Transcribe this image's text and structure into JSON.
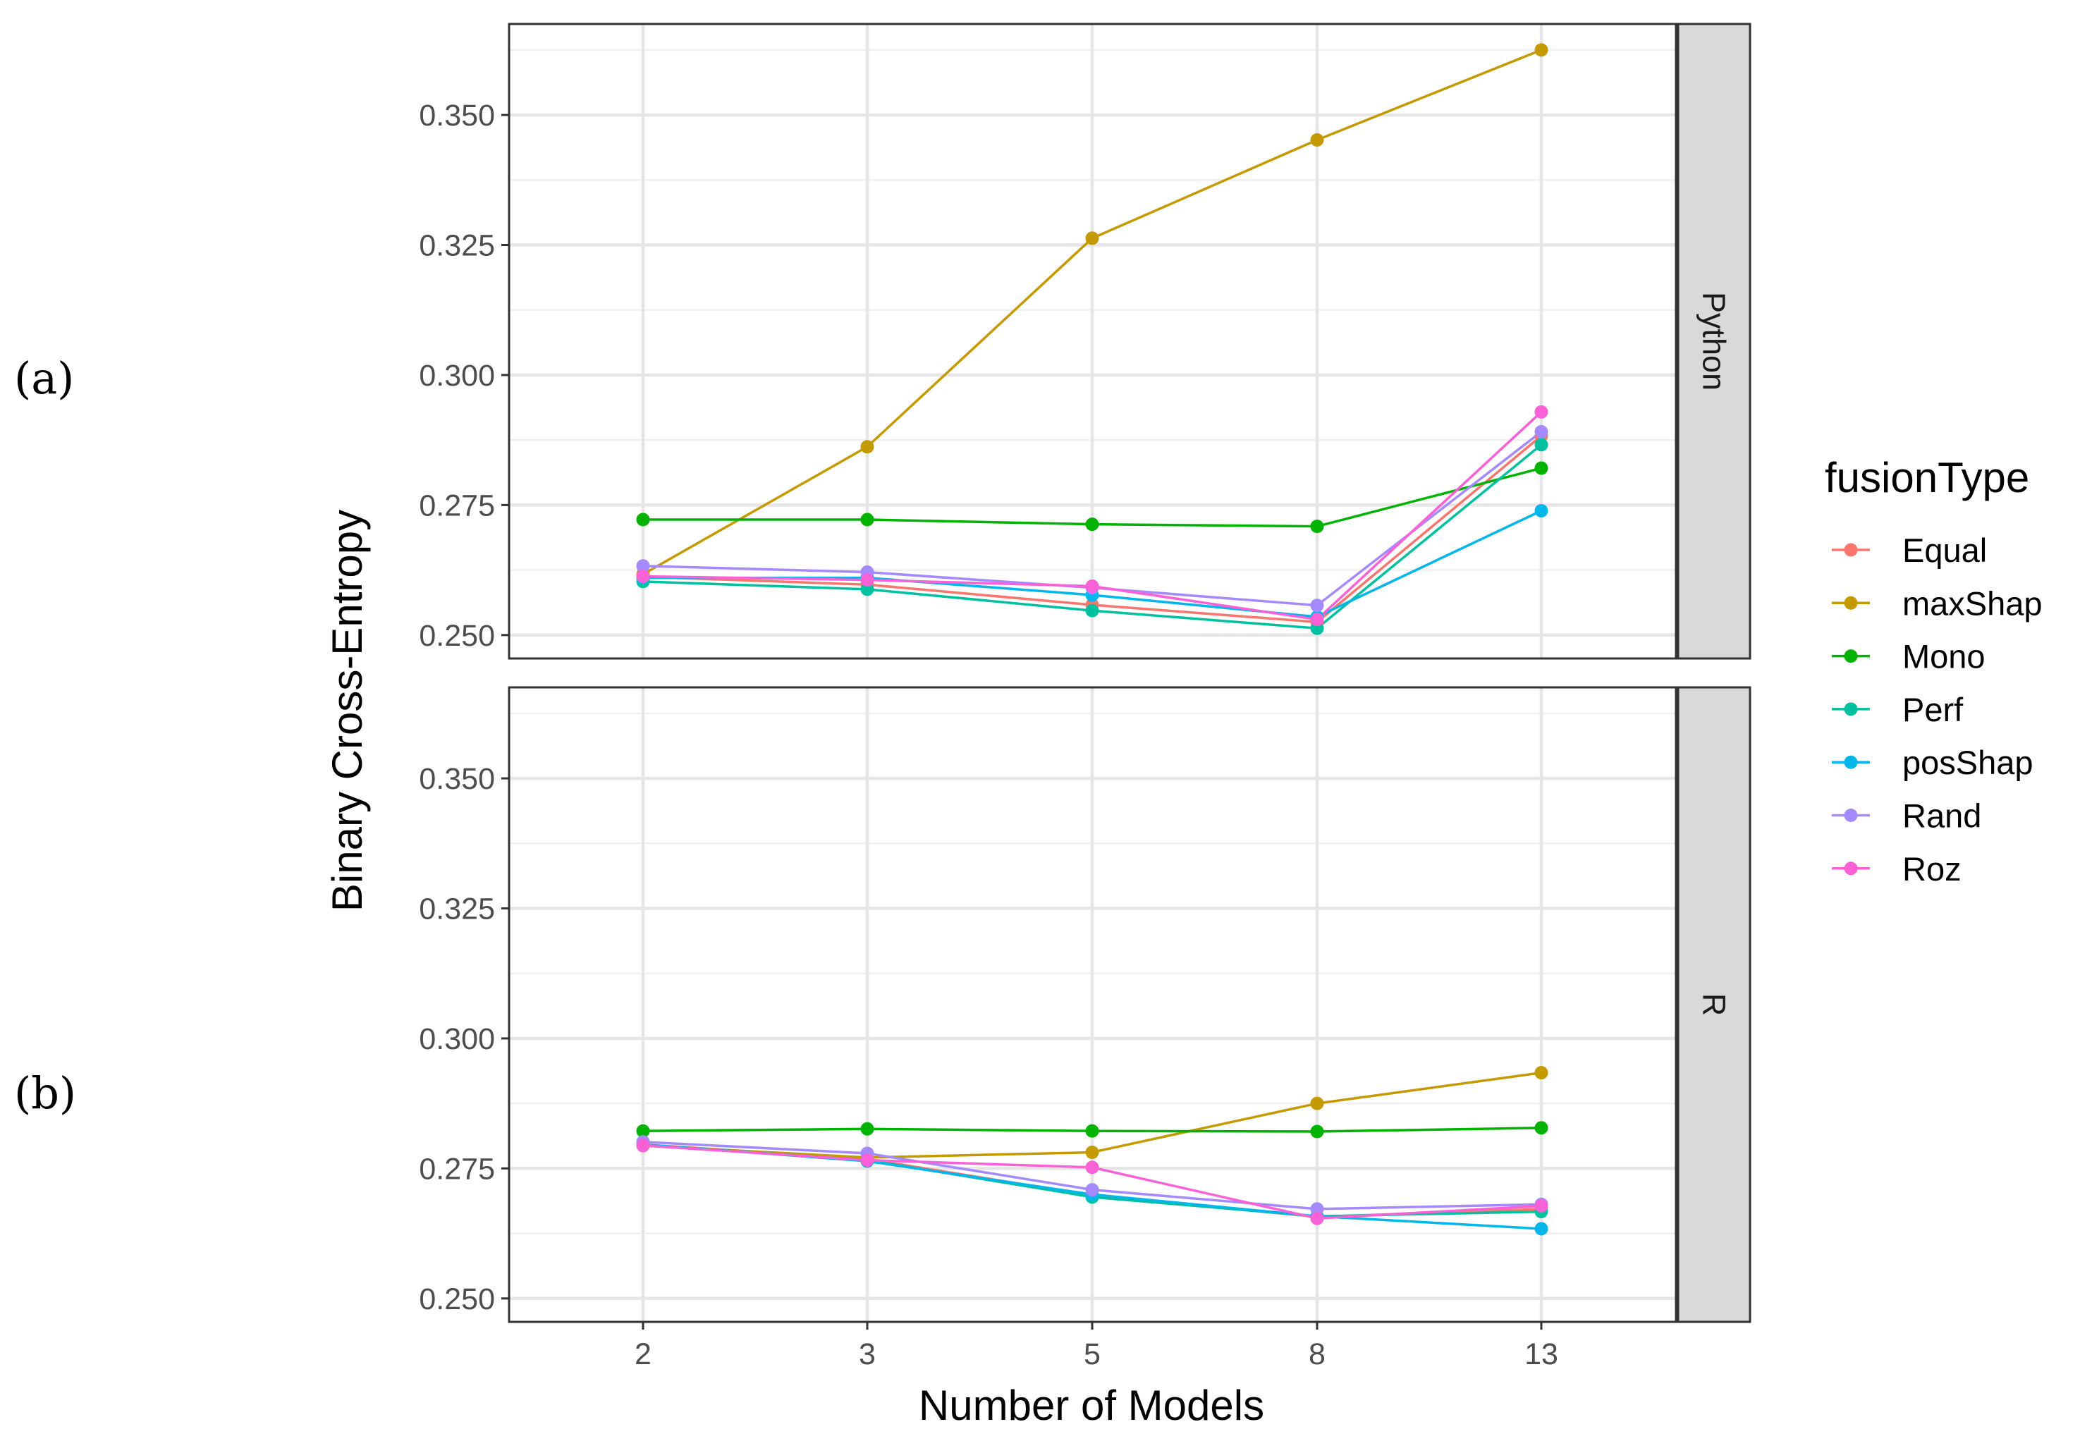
{
  "chart_data": {
    "type": "line",
    "xlabel": "Number of Models",
    "ylabel": "Binary Cross-Entropy",
    "categories": [
      "2",
      "3",
      "5",
      "8",
      "13"
    ],
    "ylim": [
      0.2455,
      0.3675
    ],
    "yticks": [
      0.25,
      0.275,
      0.3,
      0.325,
      0.35
    ],
    "ytick_labels": [
      "0.250",
      "0.275",
      "0.300",
      "0.325",
      "0.350"
    ],
    "legend": {
      "title": "fusionType",
      "position": "right",
      "entries": [
        "Equal",
        "maxShap",
        "Mono",
        "Perf",
        "posShap",
        "Rand",
        "Roz"
      ]
    },
    "colors": {
      "Equal": "#F8766D",
      "maxShap": "#C49A00",
      "Mono": "#00B300",
      "Perf": "#00C19F",
      "posShap": "#00B6EB",
      "Rand": "#A58AFF",
      "Roz": "#FB61D7"
    },
    "panels": [
      {
        "strip": "Python",
        "label": "(a)",
        "series": [
          {
            "name": "Equal",
            "values": [
              0.2612,
              0.2597,
              0.2558,
              0.2525,
              0.2883
            ]
          },
          {
            "name": "maxShap",
            "values": [
              0.2617,
              0.2862,
              0.3263,
              0.3452,
              0.3625
            ]
          },
          {
            "name": "Mono",
            "values": [
              0.2722,
              0.2722,
              0.2713,
              0.2709,
              0.2821
            ]
          },
          {
            "name": "Perf",
            "values": [
              0.2603,
              0.2588,
              0.2547,
              0.2513,
              0.2866
            ]
          },
          {
            "name": "posShap",
            "values": [
              0.261,
              0.261,
              0.2577,
              0.2535,
              0.2739
            ]
          },
          {
            "name": "Rand",
            "values": [
              0.2633,
              0.2621,
              0.2591,
              0.2557,
              0.2891
            ]
          },
          {
            "name": "Roz",
            "values": [
              0.2613,
              0.2606,
              0.2594,
              0.253,
              0.2929
            ]
          }
        ]
      },
      {
        "strip": "R",
        "label": "(b)",
        "series": [
          {
            "name": "Equal",
            "values": [
              0.2796,
              0.2768,
              0.2698,
              0.2657,
              0.2672
            ]
          },
          {
            "name": "maxShap",
            "values": [
              0.2794,
              0.2771,
              0.2781,
              0.2875,
              0.2934
            ]
          },
          {
            "name": "Mono",
            "values": [
              0.2822,
              0.2826,
              0.2822,
              0.2821,
              0.2828
            ]
          },
          {
            "name": "Perf",
            "values": [
              0.2795,
              0.2766,
              0.2695,
              0.2658,
              0.2667
            ]
          },
          {
            "name": "posShap",
            "values": [
              0.2796,
              0.2764,
              0.27,
              0.2658,
              0.2634
            ]
          },
          {
            "name": "Rand",
            "values": [
              0.2801,
              0.2779,
              0.2709,
              0.2672,
              0.2681
            ]
          },
          {
            "name": "Roz",
            "values": [
              0.2794,
              0.2766,
              0.2752,
              0.2654,
              0.2678
            ]
          }
        ]
      }
    ]
  }
}
